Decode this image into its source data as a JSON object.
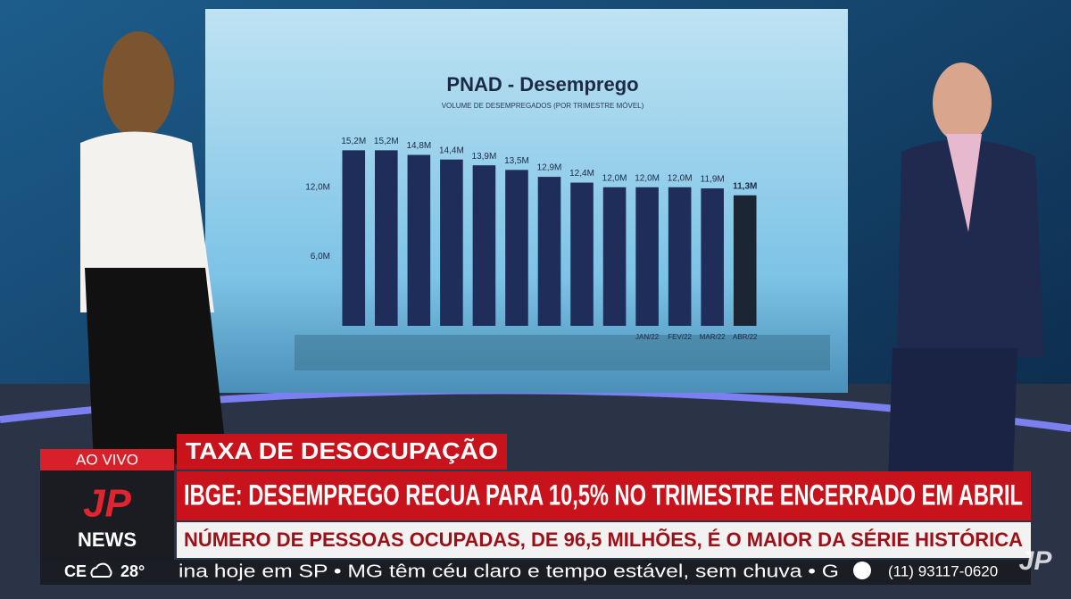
{
  "chart_data": {
    "type": "bar",
    "title": "PNAD - Desemprego",
    "subtitle": "VOLUME DE DESEMPREGADOS (POR TRIMESTRE MÓVEL)",
    "categories": [
      null,
      null,
      null,
      null,
      null,
      null,
      null,
      null,
      null,
      "JAN/22",
      "FEV/22",
      "MAR/22",
      "ABR/22"
    ],
    "values": [
      15.2,
      15.2,
      14.8,
      14.4,
      13.9,
      13.5,
      12.9,
      12.4,
      12.0,
      12.0,
      12.0,
      11.9,
      11.3
    ],
    "value_labels": [
      "15,2M",
      "15,2M",
      "14,8M",
      "14,4M",
      "13,9M",
      "13,5M",
      "12,9M",
      "12,4M",
      "12,0M",
      "12,0M",
      "12,0M",
      "11,9M",
      "11,3M"
    ],
    "colors": [
      "#1f2d5a",
      "#1f2d5a",
      "#1f2d5a",
      "#1f2d5a",
      "#1f2d5a",
      "#1f2d5a",
      "#1f2d5a",
      "#1f2d5a",
      "#1f2d5a",
      "#1f2d5a",
      "#1f2d5a",
      "#1f2d5a",
      "#1b2533"
    ],
    "ylim": [
      0,
      16
    ],
    "yticks": [
      {
        "value": 6,
        "label": "6,0M"
      },
      {
        "value": 12,
        "label": "12,0M"
      }
    ]
  },
  "lower_third": {
    "live": "AO VIVO",
    "tag": "TAXA DE DESOCUPAÇÃO",
    "headline": "IBGE: DESEMPREGO RECUA PARA 10,5% NO TRIMESTRE ENCERRADO EM ABRIL",
    "subheadline": "NÚMERO DE PESSOAS OCUPADAS, DE 96,5 MILHÕES, É O MAIOR DA SÉRIE HISTÓRICA",
    "logo_top": "JP",
    "logo_bottom": "NEWS",
    "weather_city": "CE",
    "weather_temp": "28°",
    "ticker": "ina hoje em SP • MG têm céu claro e tempo estável, sem chuva • G",
    "phone": "(11) 93117-0620",
    "corner_logo": "JP"
  }
}
